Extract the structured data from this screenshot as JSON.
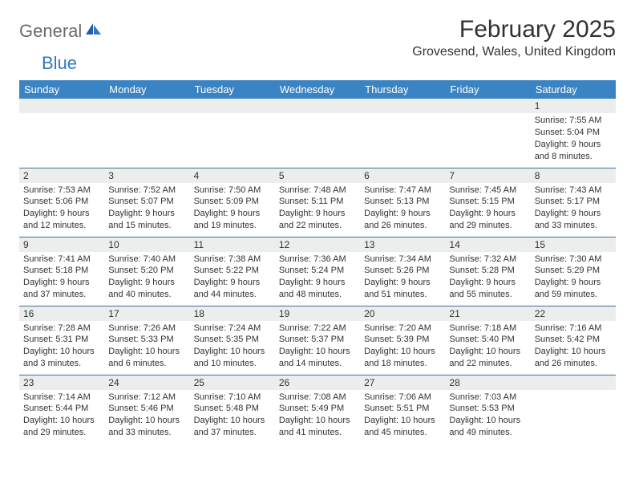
{
  "brand": {
    "general": "General",
    "blue": "Blue"
  },
  "title": "February 2025",
  "location": "Grovesend, Wales, United Kingdom",
  "colors": {
    "header_bg": "#3b84c4",
    "header_text": "#ffffff",
    "row_border": "#3b6fa0",
    "daynum_bg": "#eceded",
    "text": "#333333",
    "logo_gray": "#6b6b6b",
    "logo_blue": "#2f78bd",
    "page_bg": "#ffffff"
  },
  "weekdays": [
    "Sunday",
    "Monday",
    "Tuesday",
    "Wednesday",
    "Thursday",
    "Friday",
    "Saturday"
  ],
  "weeks": [
    [
      null,
      null,
      null,
      null,
      null,
      null,
      {
        "n": "1",
        "sr": "Sunrise: 7:55 AM",
        "ss": "Sunset: 5:04 PM",
        "d1": "Daylight: 9 hours",
        "d2": "and 8 minutes."
      }
    ],
    [
      {
        "n": "2",
        "sr": "Sunrise: 7:53 AM",
        "ss": "Sunset: 5:06 PM",
        "d1": "Daylight: 9 hours",
        "d2": "and 12 minutes."
      },
      {
        "n": "3",
        "sr": "Sunrise: 7:52 AM",
        "ss": "Sunset: 5:07 PM",
        "d1": "Daylight: 9 hours",
        "d2": "and 15 minutes."
      },
      {
        "n": "4",
        "sr": "Sunrise: 7:50 AM",
        "ss": "Sunset: 5:09 PM",
        "d1": "Daylight: 9 hours",
        "d2": "and 19 minutes."
      },
      {
        "n": "5",
        "sr": "Sunrise: 7:48 AM",
        "ss": "Sunset: 5:11 PM",
        "d1": "Daylight: 9 hours",
        "d2": "and 22 minutes."
      },
      {
        "n": "6",
        "sr": "Sunrise: 7:47 AM",
        "ss": "Sunset: 5:13 PM",
        "d1": "Daylight: 9 hours",
        "d2": "and 26 minutes."
      },
      {
        "n": "7",
        "sr": "Sunrise: 7:45 AM",
        "ss": "Sunset: 5:15 PM",
        "d1": "Daylight: 9 hours",
        "d2": "and 29 minutes."
      },
      {
        "n": "8",
        "sr": "Sunrise: 7:43 AM",
        "ss": "Sunset: 5:17 PM",
        "d1": "Daylight: 9 hours",
        "d2": "and 33 minutes."
      }
    ],
    [
      {
        "n": "9",
        "sr": "Sunrise: 7:41 AM",
        "ss": "Sunset: 5:18 PM",
        "d1": "Daylight: 9 hours",
        "d2": "and 37 minutes."
      },
      {
        "n": "10",
        "sr": "Sunrise: 7:40 AM",
        "ss": "Sunset: 5:20 PM",
        "d1": "Daylight: 9 hours",
        "d2": "and 40 minutes."
      },
      {
        "n": "11",
        "sr": "Sunrise: 7:38 AM",
        "ss": "Sunset: 5:22 PM",
        "d1": "Daylight: 9 hours",
        "d2": "and 44 minutes."
      },
      {
        "n": "12",
        "sr": "Sunrise: 7:36 AM",
        "ss": "Sunset: 5:24 PM",
        "d1": "Daylight: 9 hours",
        "d2": "and 48 minutes."
      },
      {
        "n": "13",
        "sr": "Sunrise: 7:34 AM",
        "ss": "Sunset: 5:26 PM",
        "d1": "Daylight: 9 hours",
        "d2": "and 51 minutes."
      },
      {
        "n": "14",
        "sr": "Sunrise: 7:32 AM",
        "ss": "Sunset: 5:28 PM",
        "d1": "Daylight: 9 hours",
        "d2": "and 55 minutes."
      },
      {
        "n": "15",
        "sr": "Sunrise: 7:30 AM",
        "ss": "Sunset: 5:29 PM",
        "d1": "Daylight: 9 hours",
        "d2": "and 59 minutes."
      }
    ],
    [
      {
        "n": "16",
        "sr": "Sunrise: 7:28 AM",
        "ss": "Sunset: 5:31 PM",
        "d1": "Daylight: 10 hours",
        "d2": "and 3 minutes."
      },
      {
        "n": "17",
        "sr": "Sunrise: 7:26 AM",
        "ss": "Sunset: 5:33 PM",
        "d1": "Daylight: 10 hours",
        "d2": "and 6 minutes."
      },
      {
        "n": "18",
        "sr": "Sunrise: 7:24 AM",
        "ss": "Sunset: 5:35 PM",
        "d1": "Daylight: 10 hours",
        "d2": "and 10 minutes."
      },
      {
        "n": "19",
        "sr": "Sunrise: 7:22 AM",
        "ss": "Sunset: 5:37 PM",
        "d1": "Daylight: 10 hours",
        "d2": "and 14 minutes."
      },
      {
        "n": "20",
        "sr": "Sunrise: 7:20 AM",
        "ss": "Sunset: 5:39 PM",
        "d1": "Daylight: 10 hours",
        "d2": "and 18 minutes."
      },
      {
        "n": "21",
        "sr": "Sunrise: 7:18 AM",
        "ss": "Sunset: 5:40 PM",
        "d1": "Daylight: 10 hours",
        "d2": "and 22 minutes."
      },
      {
        "n": "22",
        "sr": "Sunrise: 7:16 AM",
        "ss": "Sunset: 5:42 PM",
        "d1": "Daylight: 10 hours",
        "d2": "and 26 minutes."
      }
    ],
    [
      {
        "n": "23",
        "sr": "Sunrise: 7:14 AM",
        "ss": "Sunset: 5:44 PM",
        "d1": "Daylight: 10 hours",
        "d2": "and 29 minutes."
      },
      {
        "n": "24",
        "sr": "Sunrise: 7:12 AM",
        "ss": "Sunset: 5:46 PM",
        "d1": "Daylight: 10 hours",
        "d2": "and 33 minutes."
      },
      {
        "n": "25",
        "sr": "Sunrise: 7:10 AM",
        "ss": "Sunset: 5:48 PM",
        "d1": "Daylight: 10 hours",
        "d2": "and 37 minutes."
      },
      {
        "n": "26",
        "sr": "Sunrise: 7:08 AM",
        "ss": "Sunset: 5:49 PM",
        "d1": "Daylight: 10 hours",
        "d2": "and 41 minutes."
      },
      {
        "n": "27",
        "sr": "Sunrise: 7:06 AM",
        "ss": "Sunset: 5:51 PM",
        "d1": "Daylight: 10 hours",
        "d2": "and 45 minutes."
      },
      {
        "n": "28",
        "sr": "Sunrise: 7:03 AM",
        "ss": "Sunset: 5:53 PM",
        "d1": "Daylight: 10 hours",
        "d2": "and 49 minutes."
      },
      null
    ]
  ]
}
